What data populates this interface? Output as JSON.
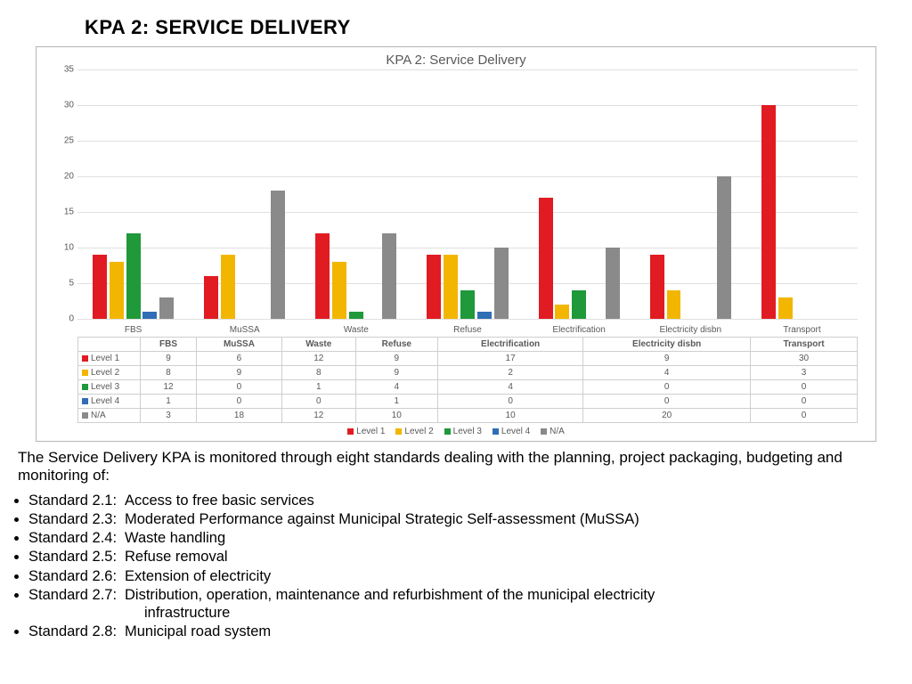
{
  "page_title": "KPA 2:  SERVICE DELIVERY",
  "chart": {
    "title": "KPA 2: Service Delivery",
    "type": "bar",
    "categories": [
      "FBS",
      "MuSSA",
      "Waste",
      "Refuse",
      "Electrification",
      "Electricity disbn",
      "Transport"
    ],
    "series": [
      {
        "name": "Level 1",
        "color": "#e11b22",
        "values": [
          9,
          6,
          12,
          9,
          17,
          9,
          30
        ]
      },
      {
        "name": "Level 2",
        "color": "#f2b600",
        "values": [
          8,
          9,
          8,
          9,
          2,
          4,
          3
        ]
      },
      {
        "name": "Level 3",
        "color": "#1f993a",
        "values": [
          12,
          0,
          1,
          4,
          4,
          0,
          0
        ]
      },
      {
        "name": "Level 4",
        "color": "#2f6db5",
        "values": [
          1,
          0,
          0,
          1,
          0,
          0,
          0
        ]
      },
      {
        "name": "N/A",
        "color": "#8a8a8a",
        "values": [
          3,
          18,
          12,
          10,
          10,
          20,
          0
        ]
      }
    ],
    "ylim": [
      0,
      35
    ],
    "ytick_step": 5,
    "background_color": "#ffffff",
    "grid_color": "#e0e0e0",
    "axis_text_color": "#595959",
    "bar_gap_ratio": 0.15,
    "group_gap_ratio": 0.25
  },
  "intro_text": "The Service Delivery KPA is monitored through eight standards dealing with the planning, project packaging, budgeting and monitoring of:",
  "standards": [
    {
      "num": "Standard 2.1:",
      "text": "Access to free basic services"
    },
    {
      "num": "Standard 2.3:",
      "text": "Moderated Performance against Municipal Strategic Self-assessment (MuSSA)"
    },
    {
      "num": "Standard 2.4:",
      "text": "Waste handling"
    },
    {
      "num": "Standard 2.5:",
      "text": "Refuse removal"
    },
    {
      "num": "Standard 2.6:",
      "text": "Extension of electricity"
    },
    {
      "num": "Standard 2.7:",
      "text": "Distribution, operation, maintenance and refurbishment of the municipal electricity",
      "cont": "infrastructure"
    },
    {
      "num": "Standard 2.8:",
      "text": "Municipal road system"
    }
  ]
}
